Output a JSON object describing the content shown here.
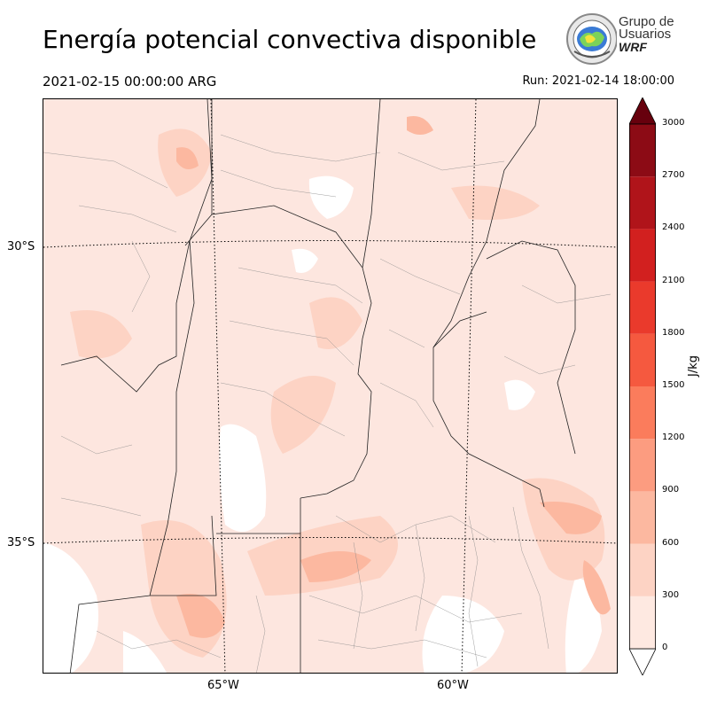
{
  "header": {
    "title": "Energía potencial convectiva disponible",
    "valid_time": "2021-02-15 00:00:00 ARG",
    "run_time": "Run: 2021-02-14 18:00:00"
  },
  "logo": {
    "line1": "Grupo de",
    "line2": "Usuarios",
    "line3": "WRF"
  },
  "map": {
    "lat_labels": [
      "30°S",
      "35°S"
    ],
    "lon_labels": [
      "65°W",
      "60°W"
    ],
    "variable": "CAPE"
  },
  "colorbar": {
    "unit": "J/kg",
    "ticks": [
      "0",
      "300",
      "600",
      "900",
      "1200",
      "1500",
      "1800",
      "2100",
      "2400",
      "2700",
      "3000"
    ],
    "colors": [
      "#fee9e1",
      "#fdd3c4",
      "#fcb8a0",
      "#fc9c80",
      "#fb7c5c",
      "#f5593f",
      "#ea3a2c",
      "#d2201f",
      "#b0141a",
      "#8c0b15"
    ],
    "extend_color": "#67000d"
  }
}
